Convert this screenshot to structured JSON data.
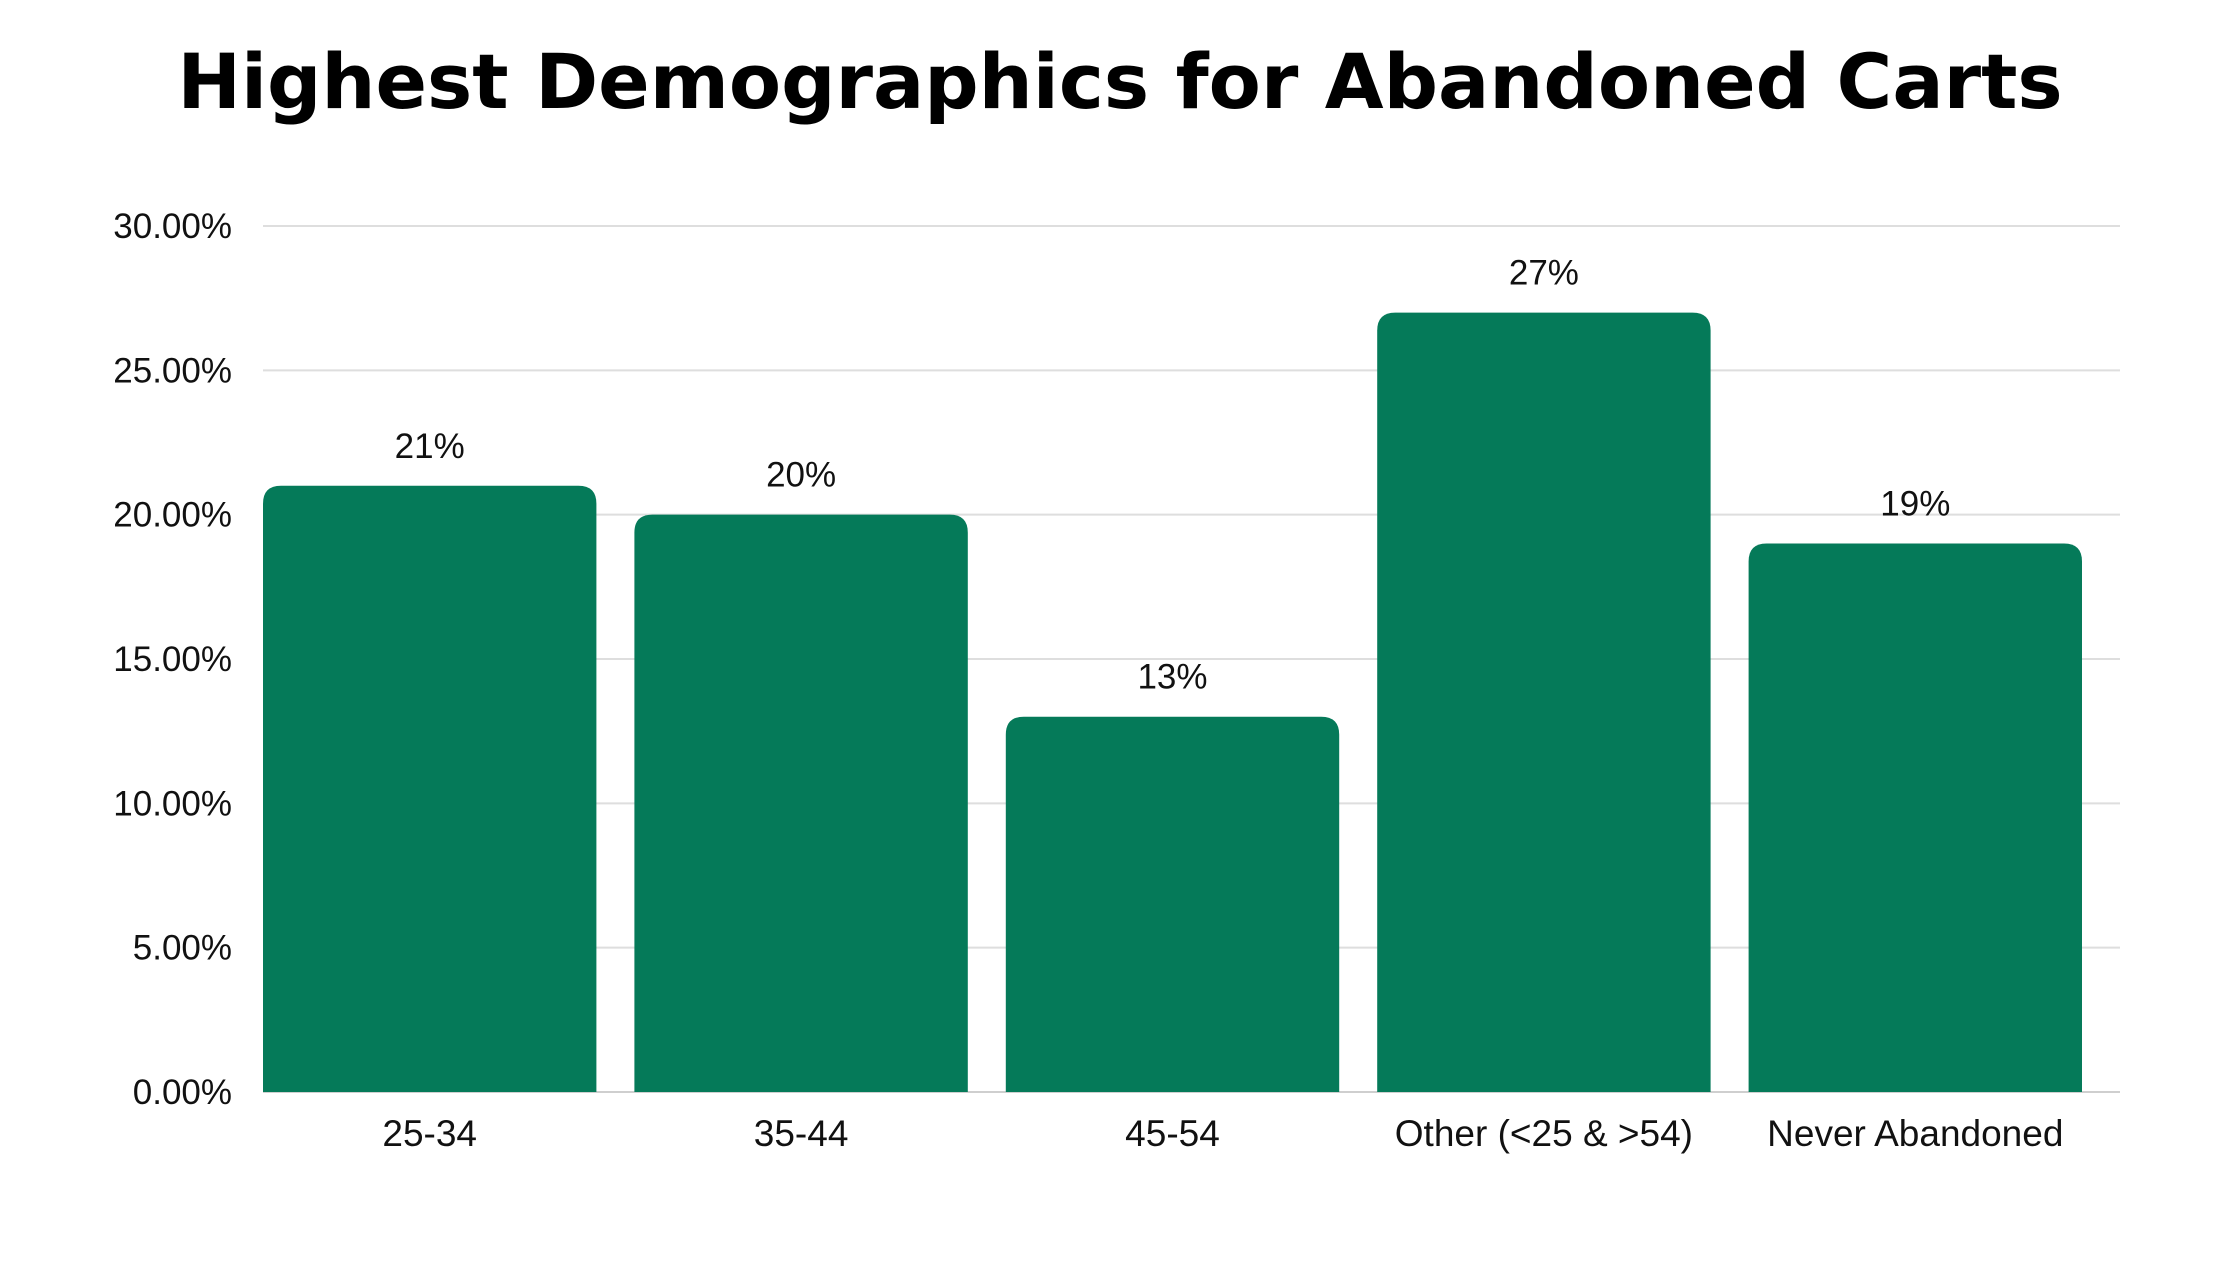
{
  "chart_data": {
    "type": "bar",
    "title": "Highest Demographics for Abandoned Carts",
    "xlabel": "",
    "ylabel": "",
    "categories": [
      "25-34",
      "35-44",
      "45-54",
      "Other (<25 & >54)",
      "Never Abandoned"
    ],
    "values": [
      21,
      20,
      13,
      27,
      19
    ],
    "data_labels": [
      "21%",
      "20%",
      "13%",
      "27%",
      "19%"
    ],
    "yticks": [
      "0.00%",
      "5.00%",
      "10.00%",
      "15.00%",
      "20.00%",
      "25.00%",
      "30.00%"
    ],
    "ylim": [
      0,
      30
    ],
    "grid": true,
    "legend": "none",
    "bar_color": "#057a59"
  }
}
